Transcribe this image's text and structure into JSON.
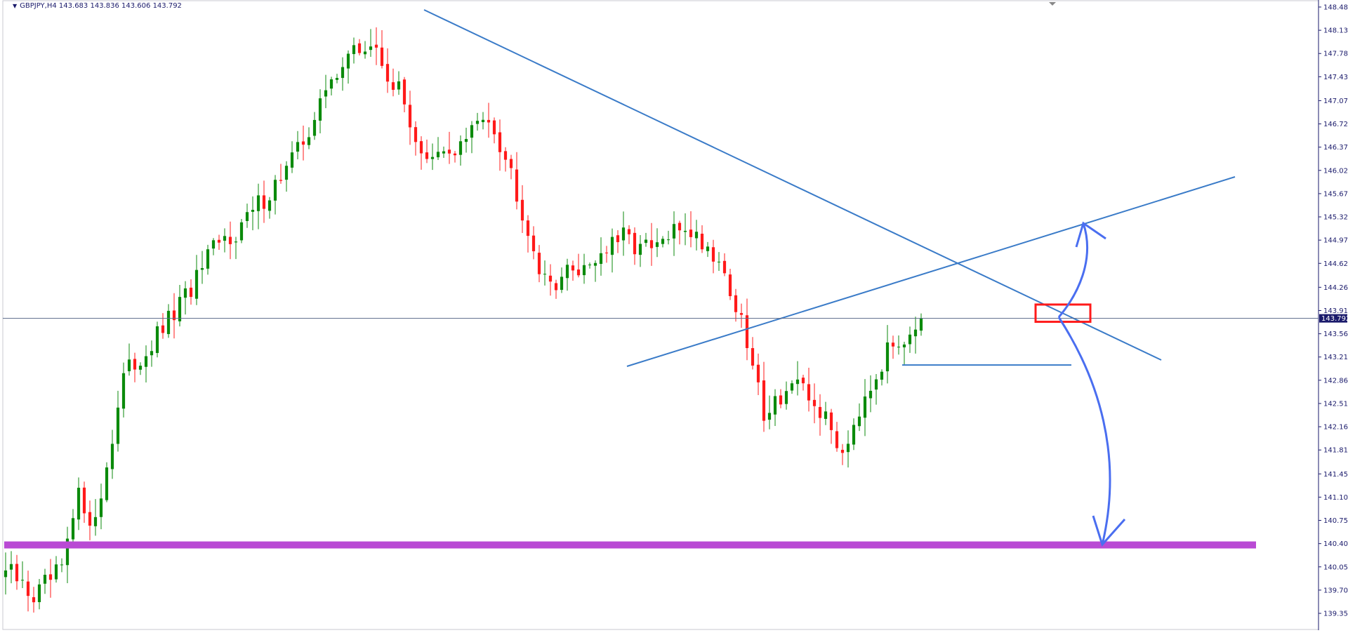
{
  "header": {
    "symbol": "GBPJPY,H4",
    "open": "143.683",
    "high": "143.836",
    "low": "143.606",
    "close": "143.792"
  },
  "colors": {
    "bull": "#0b8a0b",
    "bear": "#ff1a1a",
    "trendline": "#3a7bc8",
    "support_zone": "#b94ad4",
    "box": "#ff1a1a",
    "arrow": "#4a6ef0",
    "axis": "#1a1a6b",
    "current_price_bg": "#1a1a6b"
  },
  "chart_data": {
    "type": "candlestick",
    "symbol": "GBPJPY",
    "timeframe": "H4",
    "y_ticks": [
      "148.480",
      "148.130",
      "147.780",
      "147.430",
      "147.070",
      "146.720",
      "146.370",
      "146.020",
      "145.670",
      "145.320",
      "144.970",
      "144.620",
      "144.260",
      "143.910",
      "143.560",
      "143.210",
      "142.860",
      "142.510",
      "142.160",
      "141.810",
      "141.450",
      "141.100",
      "140.750",
      "140.400",
      "140.050",
      "139.700",
      "139.350"
    ],
    "ylim": [
      139.14,
      148.58
    ],
    "current_price": "143.792",
    "candles_count": 154,
    "support_zone_price": 140.38,
    "neckline_price": 143.09,
    "grid": false,
    "annotations": [
      "descending trendline from the 148.2 high",
      "ascending trendline from the 143.3 low",
      "horizontal level at 143.09",
      "red box at 143.8-144.0",
      "curved arrow up toward 145.2",
      "curved arrow down toward 140.4 support"
    ]
  }
}
